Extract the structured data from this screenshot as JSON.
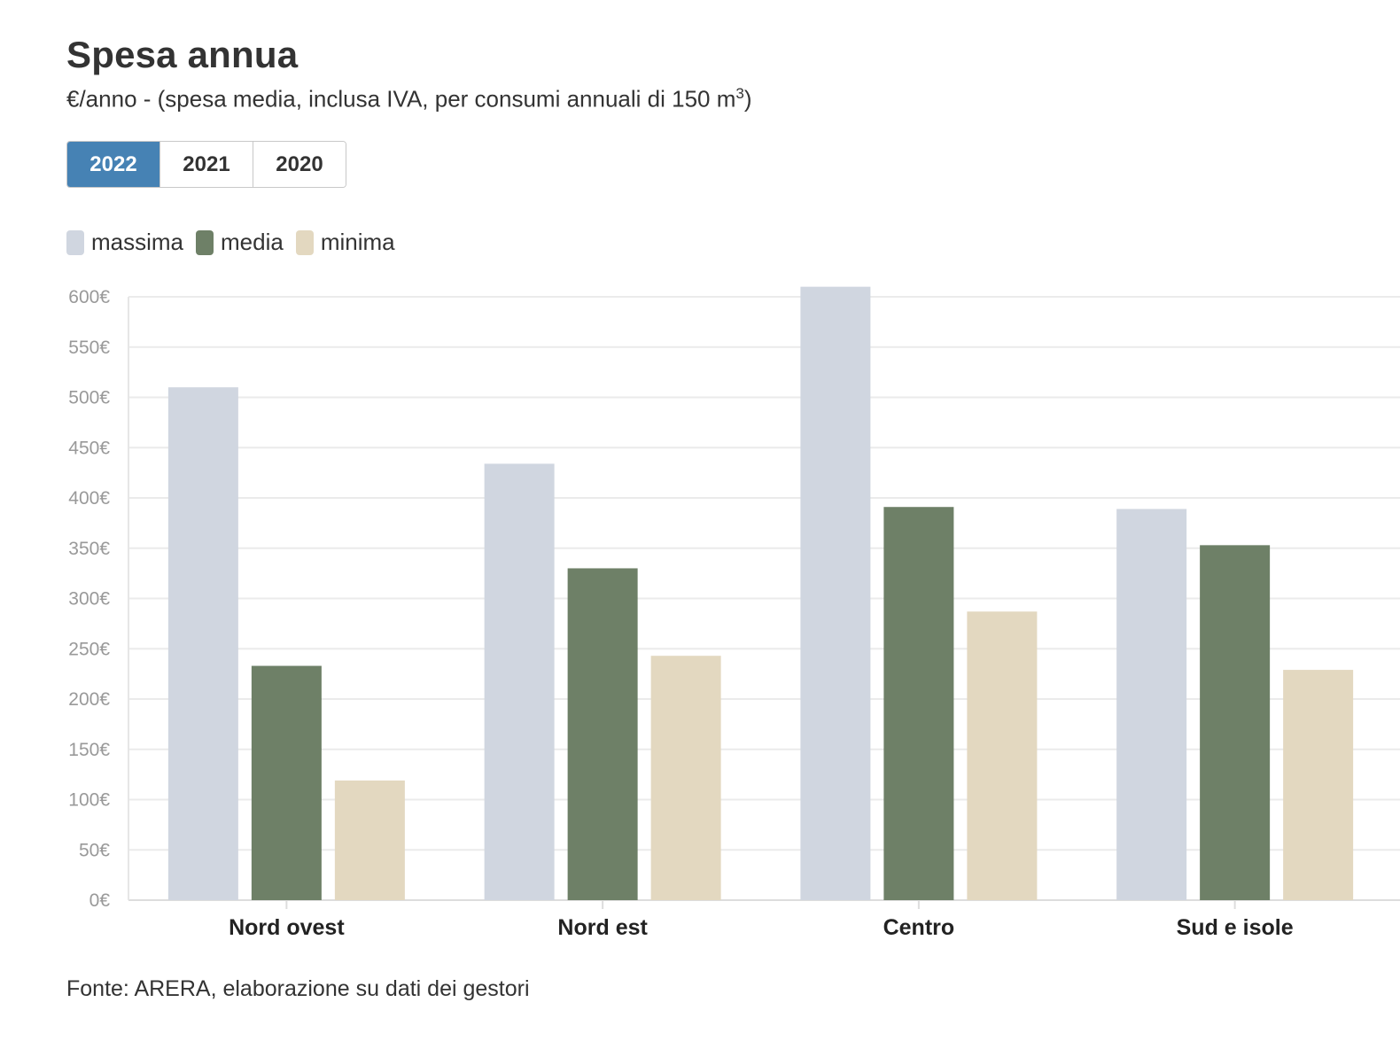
{
  "title": "Spesa annua",
  "subtitle_main": "€/anno - (spesa media, inclusa IVA, per consumi annuali di 150 m",
  "subtitle_sup": "3",
  "subtitle_end": ")",
  "tabs": [
    {
      "label": "2022",
      "active": true
    },
    {
      "label": "2021",
      "active": false
    },
    {
      "label": "2020",
      "active": false
    }
  ],
  "tab_active_color": "#4682b4",
  "source": "Fonte: ARERA, elaborazione su dati dei gestori",
  "chart_data": {
    "type": "bar",
    "title": "Spesa annua",
    "categories": [
      "Nord ovest",
      "Nord est",
      "Centro",
      "Sud e isole"
    ],
    "series": [
      {
        "name": "massima",
        "color": "#d0d6e0",
        "values": [
          510,
          434,
          610,
          389
        ]
      },
      {
        "name": "media",
        "color": "#6e8067",
        "values": [
          233,
          330,
          391,
          353
        ]
      },
      {
        "name": "minima",
        "color": "#e3d8c0",
        "values": [
          119,
          243,
          287,
          229
        ]
      }
    ],
    "ylim": [
      0,
      600
    ],
    "yticks": [
      0,
      50,
      100,
      150,
      200,
      250,
      300,
      350,
      400,
      450,
      500,
      550,
      600
    ],
    "ytick_suffix": "€",
    "grid": true,
    "legend": "top-left",
    "xlabel": "",
    "ylabel": ""
  }
}
